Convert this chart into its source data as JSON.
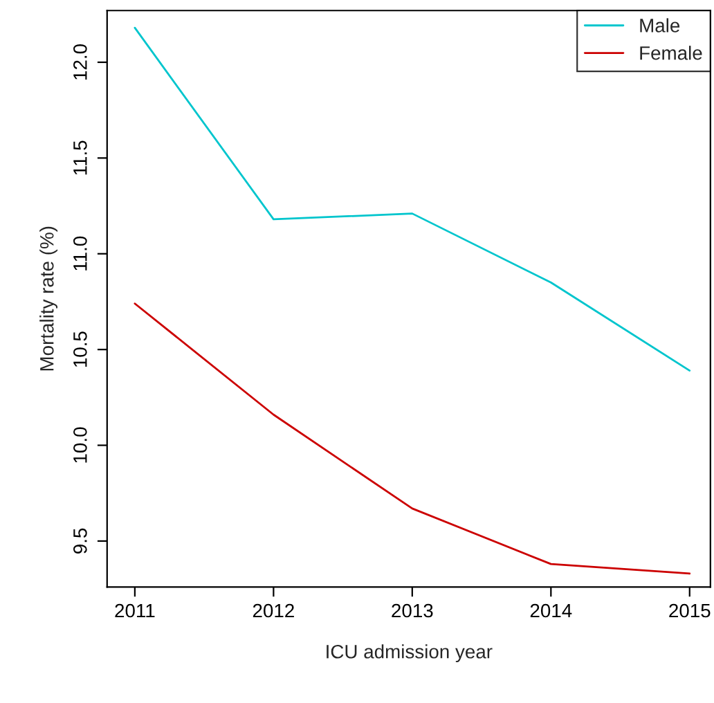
{
  "chart_data": {
    "type": "line",
    "xlabel": "ICU admission year",
    "ylabel": "Mortality rate (%)",
    "x": [
      2011,
      2012,
      2013,
      2014,
      2015
    ],
    "series": [
      {
        "name": "Male",
        "color": "#00c5cd",
        "values": [
          12.18,
          11.18,
          11.21,
          10.85,
          10.39
        ]
      },
      {
        "name": "Female",
        "color": "#cc0000",
        "values": [
          10.74,
          10.16,
          9.67,
          9.38,
          9.33
        ]
      }
    ],
    "xlim": [
      2010.8,
      2015.15
    ],
    "ylim": [
      9.26,
      12.27
    ],
    "xticks": [
      2011,
      2012,
      2013,
      2014,
      2015
    ],
    "yticks": [
      9.5,
      {
        "value": 10,
        "label": "10.0"
      },
      10.5,
      {
        "value": 11,
        "label": "11.0"
      },
      11.5,
      {
        "value": 12,
        "label": "12.0"
      }
    ],
    "grid": false,
    "legend": "top right",
    "marker": "none",
    "line_style": "solid"
  }
}
